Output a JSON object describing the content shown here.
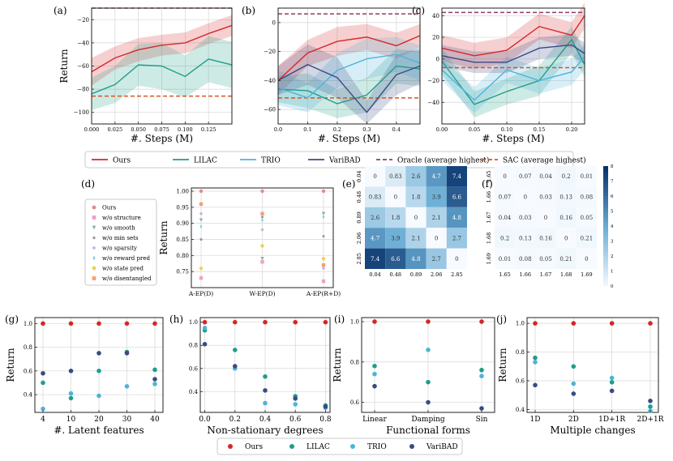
{
  "colors": {
    "ours": "#d62728",
    "lilac": "#1f9e89",
    "trio": "#4fb3d9",
    "varibad": "#3b4a84",
    "oracle": "#8e3b6a",
    "sac": "#d9541e"
  },
  "legend_top": [
    {
      "key": "ours",
      "label": "Ours",
      "dash": false
    },
    {
      "key": "lilac",
      "label": "LILAC",
      "dash": false
    },
    {
      "key": "trio",
      "label": "TRIO",
      "dash": false
    },
    {
      "key": "varibad",
      "label": "VariBAD",
      "dash": false
    },
    {
      "key": "oracle",
      "label": "Oracle (average highest)",
      "dash": true
    },
    {
      "key": "sac",
      "label": "SAC (average highest)",
      "dash": true
    }
  ],
  "legend_bottom": [
    {
      "key": "ours",
      "label": "Ours"
    },
    {
      "key": "lilac",
      "label": "LILAC"
    },
    {
      "key": "trio",
      "label": "TRIO"
    },
    {
      "key": "varibad",
      "label": "VariBAD"
    }
  ],
  "chart_data": [
    {
      "id": "a",
      "panel_label": "(a)",
      "type": "line",
      "xlabel": "#. Steps (M)",
      "ylabel": "Return",
      "xlim": [
        0,
        0.15
      ],
      "ylim": [
        -110,
        -10
      ],
      "xticks": [
        0,
        0.025,
        0.05,
        0.075,
        0.1,
        0.125
      ],
      "xtick_labels": [
        "0.000",
        "0.025",
        "0.050",
        "0.075",
        "0.100",
        "0.125"
      ],
      "yticks": [
        -100,
        -80,
        -60,
        -40,
        -20
      ],
      "ytick_labels": [
        "−100",
        "−80",
        "−60",
        "−40",
        "−20"
      ],
      "x": [
        0,
        0.025,
        0.05,
        0.075,
        0.1,
        0.125,
        0.15
      ],
      "series": [
        {
          "key": "ours",
          "values": [
            -65,
            -53,
            -46,
            -42,
            -40,
            -32,
            -25
          ],
          "band": [
            12,
            10,
            10,
            9,
            9,
            9,
            9
          ]
        },
        {
          "key": "lilac",
          "values": [
            -84,
            -76,
            -59,
            -60,
            -69,
            -54,
            -59
          ],
          "band": [
            14,
            16,
            18,
            20,
            18,
            20,
            20
          ]
        }
      ],
      "hlines": [
        {
          "key": "oracle",
          "value": -10
        },
        {
          "key": "sac",
          "value": -86
        }
      ]
    },
    {
      "id": "b",
      "panel_label": "(b)",
      "type": "line",
      "xlabel": "#. Steps (M)",
      "ylabel": "",
      "xlim": [
        0,
        0.48
      ],
      "ylim": [
        -70,
        10
      ],
      "xticks": [
        0,
        0.1,
        0.2,
        0.3,
        0.4
      ],
      "xtick_labels": [
        "0.0",
        "0.1",
        "0.2",
        "0.3",
        "0.4"
      ],
      "yticks": [
        -60,
        -40,
        -20,
        0
      ],
      "ytick_labels": [
        "−60",
        "−40",
        "−20",
        "0"
      ],
      "x": [
        0,
        0.1,
        0.2,
        0.3,
        0.4,
        0.48
      ],
      "series": [
        {
          "key": "ours",
          "values": [
            -40,
            -21,
            -13,
            -10,
            -16,
            -9
          ],
          "band": [
            10,
            9,
            10,
            9,
            9,
            8
          ]
        },
        {
          "key": "lilac",
          "values": [
            -46,
            -47,
            -56,
            -50,
            -30,
            -32
          ],
          "band": [
            9,
            12,
            10,
            12,
            12,
            12
          ]
        },
        {
          "key": "trio",
          "values": [
            -45,
            -52,
            -33,
            -25,
            -22,
            -28
          ],
          "band": [
            12,
            10,
            12,
            14,
            12,
            12
          ]
        },
        {
          "key": "varibad",
          "values": [
            -40,
            -29,
            -38,
            -62,
            -36,
            -30
          ],
          "band": [
            10,
            14,
            14,
            8,
            14,
            12
          ]
        }
      ],
      "hlines": [
        {
          "key": "oracle",
          "value": 6
        },
        {
          "key": "sac",
          "value": -52
        }
      ]
    },
    {
      "id": "c",
      "panel_label": "(c)",
      "type": "line",
      "xlabel": "#. Steps (M)",
      "ylabel": "",
      "xlim": [
        0,
        0.22
      ],
      "ylim": [
        -60,
        47
      ],
      "xticks": [
        0,
        0.05,
        0.1,
        0.15,
        0.2
      ],
      "xtick_labels": [
        "0.00",
        "0.05",
        "0.10",
        "0.15",
        "0.20"
      ],
      "yticks": [
        -40,
        -20,
        0,
        20,
        40
      ],
      "ytick_labels": [
        "−40",
        "−20",
        "0",
        "20",
        "40"
      ],
      "x": [
        0,
        0.05,
        0.1,
        0.15,
        0.2,
        0.22
      ],
      "series": [
        {
          "key": "ours",
          "values": [
            10,
            3,
            8,
            30,
            22,
            40
          ],
          "band": [
            12,
            12,
            12,
            12,
            12,
            12
          ]
        },
        {
          "key": "lilac",
          "values": [
            -2,
            -42,
            -30,
            -20,
            18,
            -5
          ],
          "band": [
            12,
            12,
            12,
            14,
            12,
            12
          ]
        },
        {
          "key": "trio",
          "values": [
            -10,
            -38,
            -10,
            -20,
            -12,
            2
          ],
          "band": [
            10,
            12,
            12,
            12,
            12,
            12
          ]
        },
        {
          "key": "varibad",
          "values": [
            3,
            -3,
            -3,
            10,
            13,
            5
          ],
          "band": [
            10,
            10,
            10,
            10,
            10,
            10
          ]
        }
      ],
      "hlines": [
        {
          "key": "oracle",
          "value": 43
        },
        {
          "key": "sac",
          "value": -8
        }
      ]
    },
    {
      "id": "d",
      "panel_label": "(d)",
      "type": "scatter",
      "ylabel": "Return",
      "categories": [
        "A-EP(D)",
        "W-EP(D)",
        "A-EP(R+D)"
      ],
      "ylim": [
        0.7,
        1.01
      ],
      "yticks": [
        0.75,
        0.8,
        0.85,
        0.9,
        0.95,
        1.0
      ],
      "ytick_labels": [
        "0.75",
        "0.80",
        "0.85",
        "0.90",
        "0.95",
        "1.00"
      ],
      "legend": [
        {
          "label": "Ours",
          "color": "#e8888a",
          "marker": "circle"
        },
        {
          "label": "w/o structure",
          "color": "#f0a0c8",
          "marker": "square"
        },
        {
          "label": "w/o smooth",
          "color": "#8ab0a8",
          "marker": "tri"
        },
        {
          "label": "w/o min sets",
          "color": "#8a8a9e",
          "marker": "star"
        },
        {
          "label": "w/o sparsity",
          "color": "#c8b0e0",
          "marker": "diamond"
        },
        {
          "label": "w/o reward pred",
          "color": "#7ec8e0",
          "marker": "thin"
        },
        {
          "label": "w/o state pred",
          "color": "#f0d050",
          "marker": "circle"
        },
        {
          "label": "w/o disentangled",
          "color": "#f4a070",
          "marker": "square"
        }
      ],
      "series": [
        {
          "name": "Ours",
          "values": [
            1.0,
            1.0,
            1.0
          ]
        },
        {
          "name": "w/o structure",
          "values": [
            0.73,
            0.78,
            0.72
          ]
        },
        {
          "name": "w/o smooth",
          "values": [
            0.91,
            0.79,
            0.93
          ]
        },
        {
          "name": "w/o min sets",
          "values": [
            0.85,
            0.92,
            0.86
          ]
        },
        {
          "name": "w/o sparsity",
          "values": [
            0.93,
            0.88,
            0.76
          ]
        },
        {
          "name": "w/o reward pred",
          "values": [
            0.89,
            0.91,
            0.92
          ]
        },
        {
          "name": "w/o state pred",
          "values": [
            0.76,
            0.83,
            0.79
          ]
        },
        {
          "name": "w/o disentangled",
          "values": [
            0.96,
            0.93,
            0.77
          ]
        }
      ]
    },
    {
      "id": "e",
      "panel_label": "(e)",
      "type": "heatmap",
      "row_labels": [
        "0.04",
        "0.48",
        "0.89",
        "2.06",
        "2.85"
      ],
      "col_labels": [
        "0.04",
        "0.48",
        "0.89",
        "2.06",
        "2.85"
      ],
      "values": [
        [
          0,
          0.83,
          2.6,
          4.7,
          7.4
        ],
        [
          0.83,
          0,
          1.8,
          3.9,
          6.6
        ],
        [
          2.6,
          1.8,
          0,
          2.1,
          4.8
        ],
        [
          4.7,
          3.9,
          2.1,
          0,
          2.7
        ],
        [
          7.4,
          6.6,
          4.8,
          2.7,
          0
        ]
      ],
      "value_labels": [
        [
          "0",
          "0.83",
          "2.6",
          "4.7",
          "7.4"
        ],
        [
          "0.83",
          "0",
          "1.8",
          "3.9",
          "6.6"
        ],
        [
          "2.6",
          "1.8",
          "0",
          "2.1",
          "4.8"
        ],
        [
          "4.7",
          "3.9",
          "2.1",
          "0",
          "2.7"
        ],
        [
          "7.4",
          "6.6",
          "4.8",
          "2.7",
          "0"
        ]
      ]
    },
    {
      "id": "f",
      "panel_label": "(f)",
      "type": "heatmap",
      "row_labels": [
        "1.65",
        "1.66",
        "1.67",
        "1.68",
        "1.69"
      ],
      "col_labels": [
        "1.65",
        "1.66",
        "1.67",
        "1.68",
        "1.69"
      ],
      "values": [
        [
          0,
          0.07,
          0.04,
          0.2,
          0.01
        ],
        [
          0.07,
          0,
          0.03,
          0.13,
          0.08
        ],
        [
          0.04,
          0.03,
          0,
          0.16,
          0.05
        ],
        [
          0.2,
          0.13,
          0.16,
          0,
          0.21
        ],
        [
          0.01,
          0.08,
          0.05,
          0.21,
          0
        ]
      ],
      "value_labels": [
        [
          "0",
          "0.07",
          "0.04",
          "0.2",
          "0.01"
        ],
        [
          "0.07",
          "0",
          "0.03",
          "0.13",
          "0.08"
        ],
        [
          "0.04",
          "0.03",
          "0",
          "0.16",
          "0.05"
        ],
        [
          "0.2",
          "0.13",
          "0.16",
          "0",
          "0.21"
        ],
        [
          "0.01",
          "0.08",
          "0.05",
          "0.21",
          "0"
        ]
      ],
      "colorbar_ticks": [
        "0",
        "1",
        "2",
        "3",
        "4",
        "5",
        "6",
        "7",
        "8"
      ]
    },
    {
      "id": "g",
      "panel_label": "(g)",
      "type": "scatter",
      "xlabel": "#. Latent features",
      "ylabel": "Return",
      "categories": [
        "4",
        "10",
        "20",
        "30",
        "40"
      ],
      "ylim": [
        0.25,
        1.05
      ],
      "yticks": [
        0.4,
        0.6,
        0.8,
        1.0
      ],
      "ytick_labels": [
        "0.4",
        "0.6",
        "0.8",
        "1.0"
      ],
      "series": [
        {
          "key": "ours",
          "values": [
            1.0,
            1.0,
            1.0,
            1.0,
            1.0
          ]
        },
        {
          "key": "lilac",
          "values": [
            0.5,
            0.37,
            0.6,
            0.76,
            0.61
          ]
        },
        {
          "key": "trio",
          "values": [
            0.28,
            0.41,
            0.39,
            0.47,
            0.49
          ]
        },
        {
          "key": "varibad",
          "values": [
            0.58,
            0.6,
            0.75,
            0.75,
            0.53
          ]
        }
      ]
    },
    {
      "id": "h",
      "panel_label": "(h)",
      "type": "scatter",
      "xlabel": "Non-stationary degrees",
      "ylabel": "",
      "x": [
        0.0,
        0.2,
        0.4,
        0.6,
        0.8
      ],
      "xticks": [
        0.0,
        0.2,
        0.4,
        0.6,
        0.8
      ],
      "xtick_labels": [
        "0.0",
        "0.2",
        "0.4",
        "0.6",
        "0.8"
      ],
      "ylim": [
        0.22,
        1.04
      ],
      "yticks": [
        0.4,
        0.6,
        0.8,
        1.0
      ],
      "ytick_labels": [
        "0.4",
        "0.6",
        "0.8",
        "1.0"
      ],
      "series": [
        {
          "key": "ours",
          "values": [
            1.0,
            1.0,
            1.0,
            1.0,
            1.0
          ]
        },
        {
          "key": "lilac",
          "values": [
            0.93,
            0.76,
            0.53,
            0.36,
            0.28
          ]
        },
        {
          "key": "trio",
          "values": [
            0.95,
            0.6,
            0.3,
            0.29,
            0.26
          ]
        },
        {
          "key": "varibad",
          "values": [
            0.81,
            0.62,
            0.41,
            0.34,
            0.27
          ]
        }
      ]
    },
    {
      "id": "i",
      "panel_label": "(i)",
      "type": "scatter",
      "xlabel": "Functional forms",
      "ylabel": "Return",
      "categories": [
        "Linear",
        "Damping",
        "Sin"
      ],
      "ylim": [
        0.55,
        1.02
      ],
      "yticks": [
        0.6,
        0.8,
        1.0
      ],
      "ytick_labels": [
        "0.6",
        "0.8",
        "1.0"
      ],
      "series": [
        {
          "key": "ours",
          "values": [
            1.0,
            1.0,
            1.0
          ]
        },
        {
          "key": "lilac",
          "values": [
            0.78,
            0.7,
            0.76
          ]
        },
        {
          "key": "trio",
          "values": [
            0.74,
            0.86,
            0.73
          ]
        },
        {
          "key": "varibad",
          "values": [
            0.68,
            0.6,
            0.57
          ]
        }
      ]
    },
    {
      "id": "j",
      "panel_label": "(j)",
      "type": "scatter",
      "xlabel": "Multiple changes",
      "ylabel": "Return",
      "categories": [
        "1D",
        "2D",
        "1D+1R",
        "2D+1R"
      ],
      "ylim": [
        0.38,
        1.04
      ],
      "yticks": [
        0.4,
        0.6,
        0.8,
        1.0
      ],
      "ytick_labels": [
        "0.4",
        "0.6",
        "0.8",
        "1.0"
      ],
      "series": [
        {
          "key": "ours",
          "values": [
            1.0,
            1.0,
            1.0,
            1.0
          ]
        },
        {
          "key": "lilac",
          "values": [
            0.76,
            0.7,
            0.59,
            0.42
          ]
        },
        {
          "key": "trio",
          "values": [
            0.73,
            0.58,
            0.62,
            0.39
          ]
        },
        {
          "key": "varibad",
          "values": [
            0.57,
            0.51,
            0.53,
            0.46
          ]
        }
      ]
    }
  ]
}
